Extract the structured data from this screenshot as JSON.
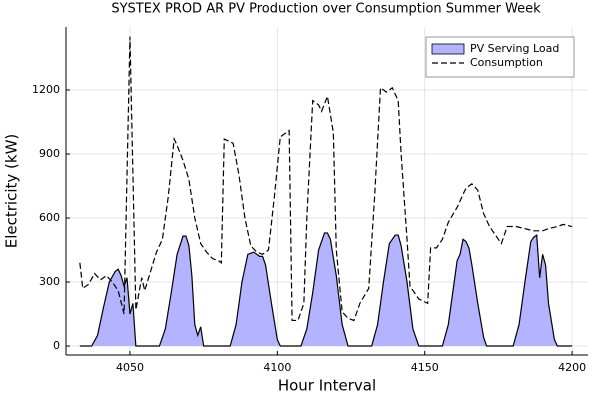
{
  "chart_data": {
    "type": "area-line",
    "title": "SYSTEX PROD AR PV Production over Consumption Summer Week",
    "xlabel": "Hour Interval",
    "ylabel": "Electricity (kW)",
    "xlim": [
      4028.3,
      4205.4
    ],
    "ylim": [
      -42,
      1495
    ],
    "xticks": [
      4050,
      4100,
      4150,
      4200
    ],
    "yticks": [
      0,
      300,
      600,
      900,
      1200
    ],
    "grid": true,
    "legend": "top-right",
    "series": [
      {
        "name": "PV Serving Load",
        "kind": "area",
        "color": "#b3b3ff",
        "x": [
          4033,
          4037,
          4039,
          4041,
          4043,
          4045,
          4046,
          4047,
          4048,
          4049,
          4050,
          4051,
          4052,
          4060,
          4062,
          4064,
          4066,
          4068,
          4069,
          4070,
          4071,
          4072,
          4073,
          4074,
          4075,
          4084,
          4086,
          4088,
          4090,
          4092,
          4094,
          4095,
          4096,
          4098,
          4100,
          4101,
          4108,
          4110,
          4112,
          4114,
          4116,
          4117,
          4118,
          4120,
          4122,
          4124,
          4132,
          4134,
          4136,
          4138,
          4140,
          4141,
          4142,
          4144,
          4146,
          4148,
          4156,
          4158,
          4160,
          4161,
          4162,
          4163,
          4164,
          4165,
          4166,
          4168,
          4170,
          4171,
          4180,
          4182,
          4184,
          4186,
          4187,
          4188,
          4189,
          4190,
          4191,
          4192,
          4194,
          4195,
          4200
        ],
        "values": [
          0,
          0,
          50,
          180,
          300,
          350,
          360,
          330,
          280,
          320,
          150,
          200,
          0,
          0,
          80,
          250,
          430,
          515,
          515,
          470,
          330,
          100,
          50,
          90,
          0,
          0,
          100,
          300,
          430,
          440,
          420,
          420,
          380,
          200,
          30,
          0,
          0,
          80,
          250,
          450,
          530,
          530,
          500,
          330,
          100,
          0,
          0,
          100,
          300,
          480,
          520,
          520,
          470,
          300,
          80,
          0,
          0,
          100,
          300,
          400,
          430,
          500,
          490,
          460,
          380,
          200,
          40,
          0,
          0,
          100,
          300,
          490,
          510,
          520,
          320,
          430,
          380,
          200,
          30,
          0,
          0
        ]
      },
      {
        "name": "Consumption",
        "kind": "dashed",
        "color": "#000000",
        "x": [
          4033,
          4034,
          4036,
          4038,
          4040,
          4042,
          4044,
          4046,
          4048,
          4050,
          4052,
          4054,
          4055,
          4057,
          4059,
          4061,
          4063,
          4065,
          4066,
          4068,
          4070,
          4072,
          4074,
          4076,
          4078,
          4080,
          4081,
          4082,
          4085,
          4087,
          4089,
          4091,
          4093,
          4095,
          4097,
          4099,
          4101,
          4104,
          4105,
          4107,
          4109,
          4110,
          4112,
          4114,
          4115,
          4117,
          4119,
          4120,
          4122,
          4124,
          4126,
          4128,
          4131,
          4133,
          4135,
          4137,
          4139,
          4141,
          4142,
          4144,
          4145,
          4148,
          4151,
          4152,
          4154,
          4156,
          4158,
          4161,
          4164,
          4166,
          4168,
          4170,
          4172,
          4174,
          4176,
          4178,
          4181,
          4184,
          4187,
          4190,
          4192,
          4195,
          4197,
          4200
        ],
        "values": [
          390,
          270,
          290,
          340,
          310,
          330,
          300,
          260,
          150,
          1450,
          170,
          320,
          260,
          350,
          440,
          500,
          700,
          970,
          940,
          870,
          780,
          600,
          480,
          440,
          410,
          400,
          390,
          970,
          950,
          800,
          600,
          470,
          440,
          430,
          450,
          700,
          980,
          1010,
          120,
          120,
          200,
          600,
          1150,
          1130,
          1100,
          1170,
          1000,
          450,
          160,
          130,
          120,
          200,
          270,
          700,
          1210,
          1190,
          1210,
          1150,
          900,
          500,
          280,
          220,
          200,
          460,
          460,
          500,
          580,
          650,
          740,
          760,
          730,
          620,
          560,
          520,
          480,
          560,
          560,
          550,
          540,
          540,
          550,
          560,
          570,
          560
        ]
      }
    ]
  }
}
